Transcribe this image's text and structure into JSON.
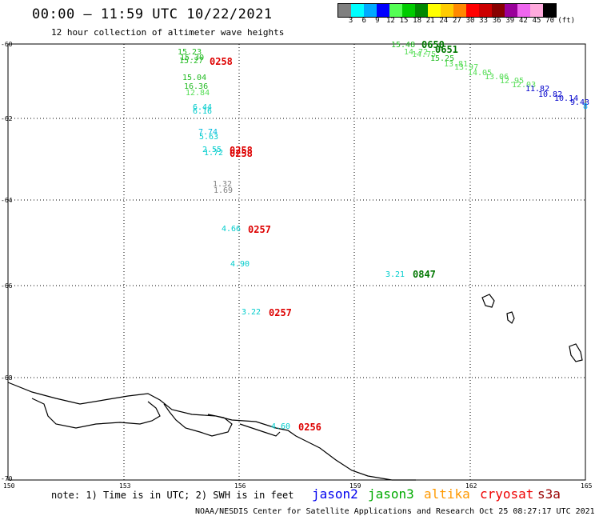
{
  "header": {
    "title": "00:00 – 11:59 UTC 10/22/2021",
    "subtitle": "12 hour collection of altimeter wave heights"
  },
  "legend": {
    "colors": [
      "#808080",
      "#00ffff",
      "#00aaff",
      "#0000ff",
      "#55ff55",
      "#00cc00",
      "#008800",
      "#ffff00",
      "#ffcc00",
      "#ff8800",
      "#ff0000",
      "#cc0000",
      "#880000",
      "#990099",
      "#ee66ee",
      "#ffaadd",
      "#000000"
    ],
    "labels": [
      "3",
      "6",
      "9",
      "12",
      "15",
      "18",
      "21",
      "24",
      "27",
      "30",
      "33",
      "36",
      "39",
      "42",
      "45",
      "70",
      "(ft)"
    ]
  },
  "axes": {
    "lat_labels": [
      "-60",
      "-62",
      "-64",
      "-66",
      "-68",
      "-70"
    ],
    "lon_labels": [
      "150",
      "153",
      "156",
      "159",
      "162",
      "165"
    ]
  },
  "observations": [
    {
      "text": "15.23",
      "color": "#22bb22"
    },
    {
      "text": "15.30",
      "color": "#22bb22"
    },
    {
      "text": "15.27",
      "color": "#22bb22"
    },
    {
      "text": "0258",
      "color": "#dd0000",
      "pass": true
    },
    {
      "text": "15.04",
      "color": "#22bb22"
    },
    {
      "text": "16.36",
      "color": "#22bb22"
    },
    {
      "text": "12.84",
      "color": "#55dd55"
    },
    {
      "text": "6.44",
      "color": "#00cccc"
    },
    {
      "text": "6.16",
      "color": "#00cccc"
    },
    {
      "text": "7.74",
      "color": "#00bbdd"
    },
    {
      "text": "5.63",
      "color": "#00cccc"
    },
    {
      "text": "2.55",
      "color": "#00cccc"
    },
    {
      "text": "1.72",
      "color": "#00cccc"
    },
    {
      "text": "0258",
      "color": "#dd0000",
      "pass": true
    },
    {
      "text": "0258",
      "color": "#dd0000",
      "pass": true
    },
    {
      "text": "1.32",
      "color": "#808080"
    },
    {
      "text": "1.69",
      "color": "#808080"
    },
    {
      "text": "4.66",
      "color": "#00cccc"
    },
    {
      "text": "0257",
      "color": "#dd0000",
      "pass": true
    },
    {
      "text": "4.90",
      "color": "#00cccc"
    },
    {
      "text": "3.21",
      "color": "#00cccc"
    },
    {
      "text": "0847",
      "color": "#007700",
      "pass": true
    },
    {
      "text": "3.22",
      "color": "#00cccc"
    },
    {
      "text": "0257",
      "color": "#dd0000",
      "pass": true
    },
    {
      "text": "4.60",
      "color": "#00cccc"
    },
    {
      "text": "0256",
      "color": "#dd0000",
      "pass": true
    },
    {
      "text": "15.48",
      "color": "#22bb22"
    },
    {
      "text": "0650",
      "color": "#007700",
      "pass": true
    },
    {
      "text": "14.72",
      "color": "#55dd55"
    },
    {
      "text": "14.75",
      "color": "#55dd55"
    },
    {
      "text": "0651",
      "color": "#007700",
      "pass": true
    },
    {
      "text": "15.25",
      "color": "#22bb22"
    },
    {
      "text": "13.81",
      "color": "#55dd55"
    },
    {
      "text": "13.97",
      "color": "#55dd55"
    },
    {
      "text": "14.05",
      "color": "#55dd55"
    },
    {
      "text": "13.06",
      "color": "#55dd55"
    },
    {
      "text": "12.95",
      "color": "#55dd55"
    },
    {
      "text": "12.03",
      "color": "#55dd55"
    },
    {
      "text": "11.82",
      "color": "#0000cc"
    },
    {
      "text": "10.82",
      "color": "#0000cc"
    },
    {
      "text": "10.14",
      "color": "#0000cc"
    },
    {
      "text": "9.43",
      "color": "#0000cc"
    },
    {
      "text": "8",
      "color": "#00aaff"
    }
  ],
  "footer": {
    "note": "note: 1) Time is in UTC; 2) SWH is in feet",
    "satellites": [
      {
        "name": "jason2",
        "color": "#0000ee"
      },
      {
        "name": "jason3",
        "color": "#00aa00"
      },
      {
        "name": "altika",
        "color": "#ff9900"
      },
      {
        "name": "cryosat",
        "color": "#ee0000"
      },
      {
        "name": "s3a",
        "color": "#990000"
      }
    ],
    "credit": "NOAA/NESDIS Center for Satellite Applications and Research   Oct 25 08:27:17 UTC 2021"
  }
}
